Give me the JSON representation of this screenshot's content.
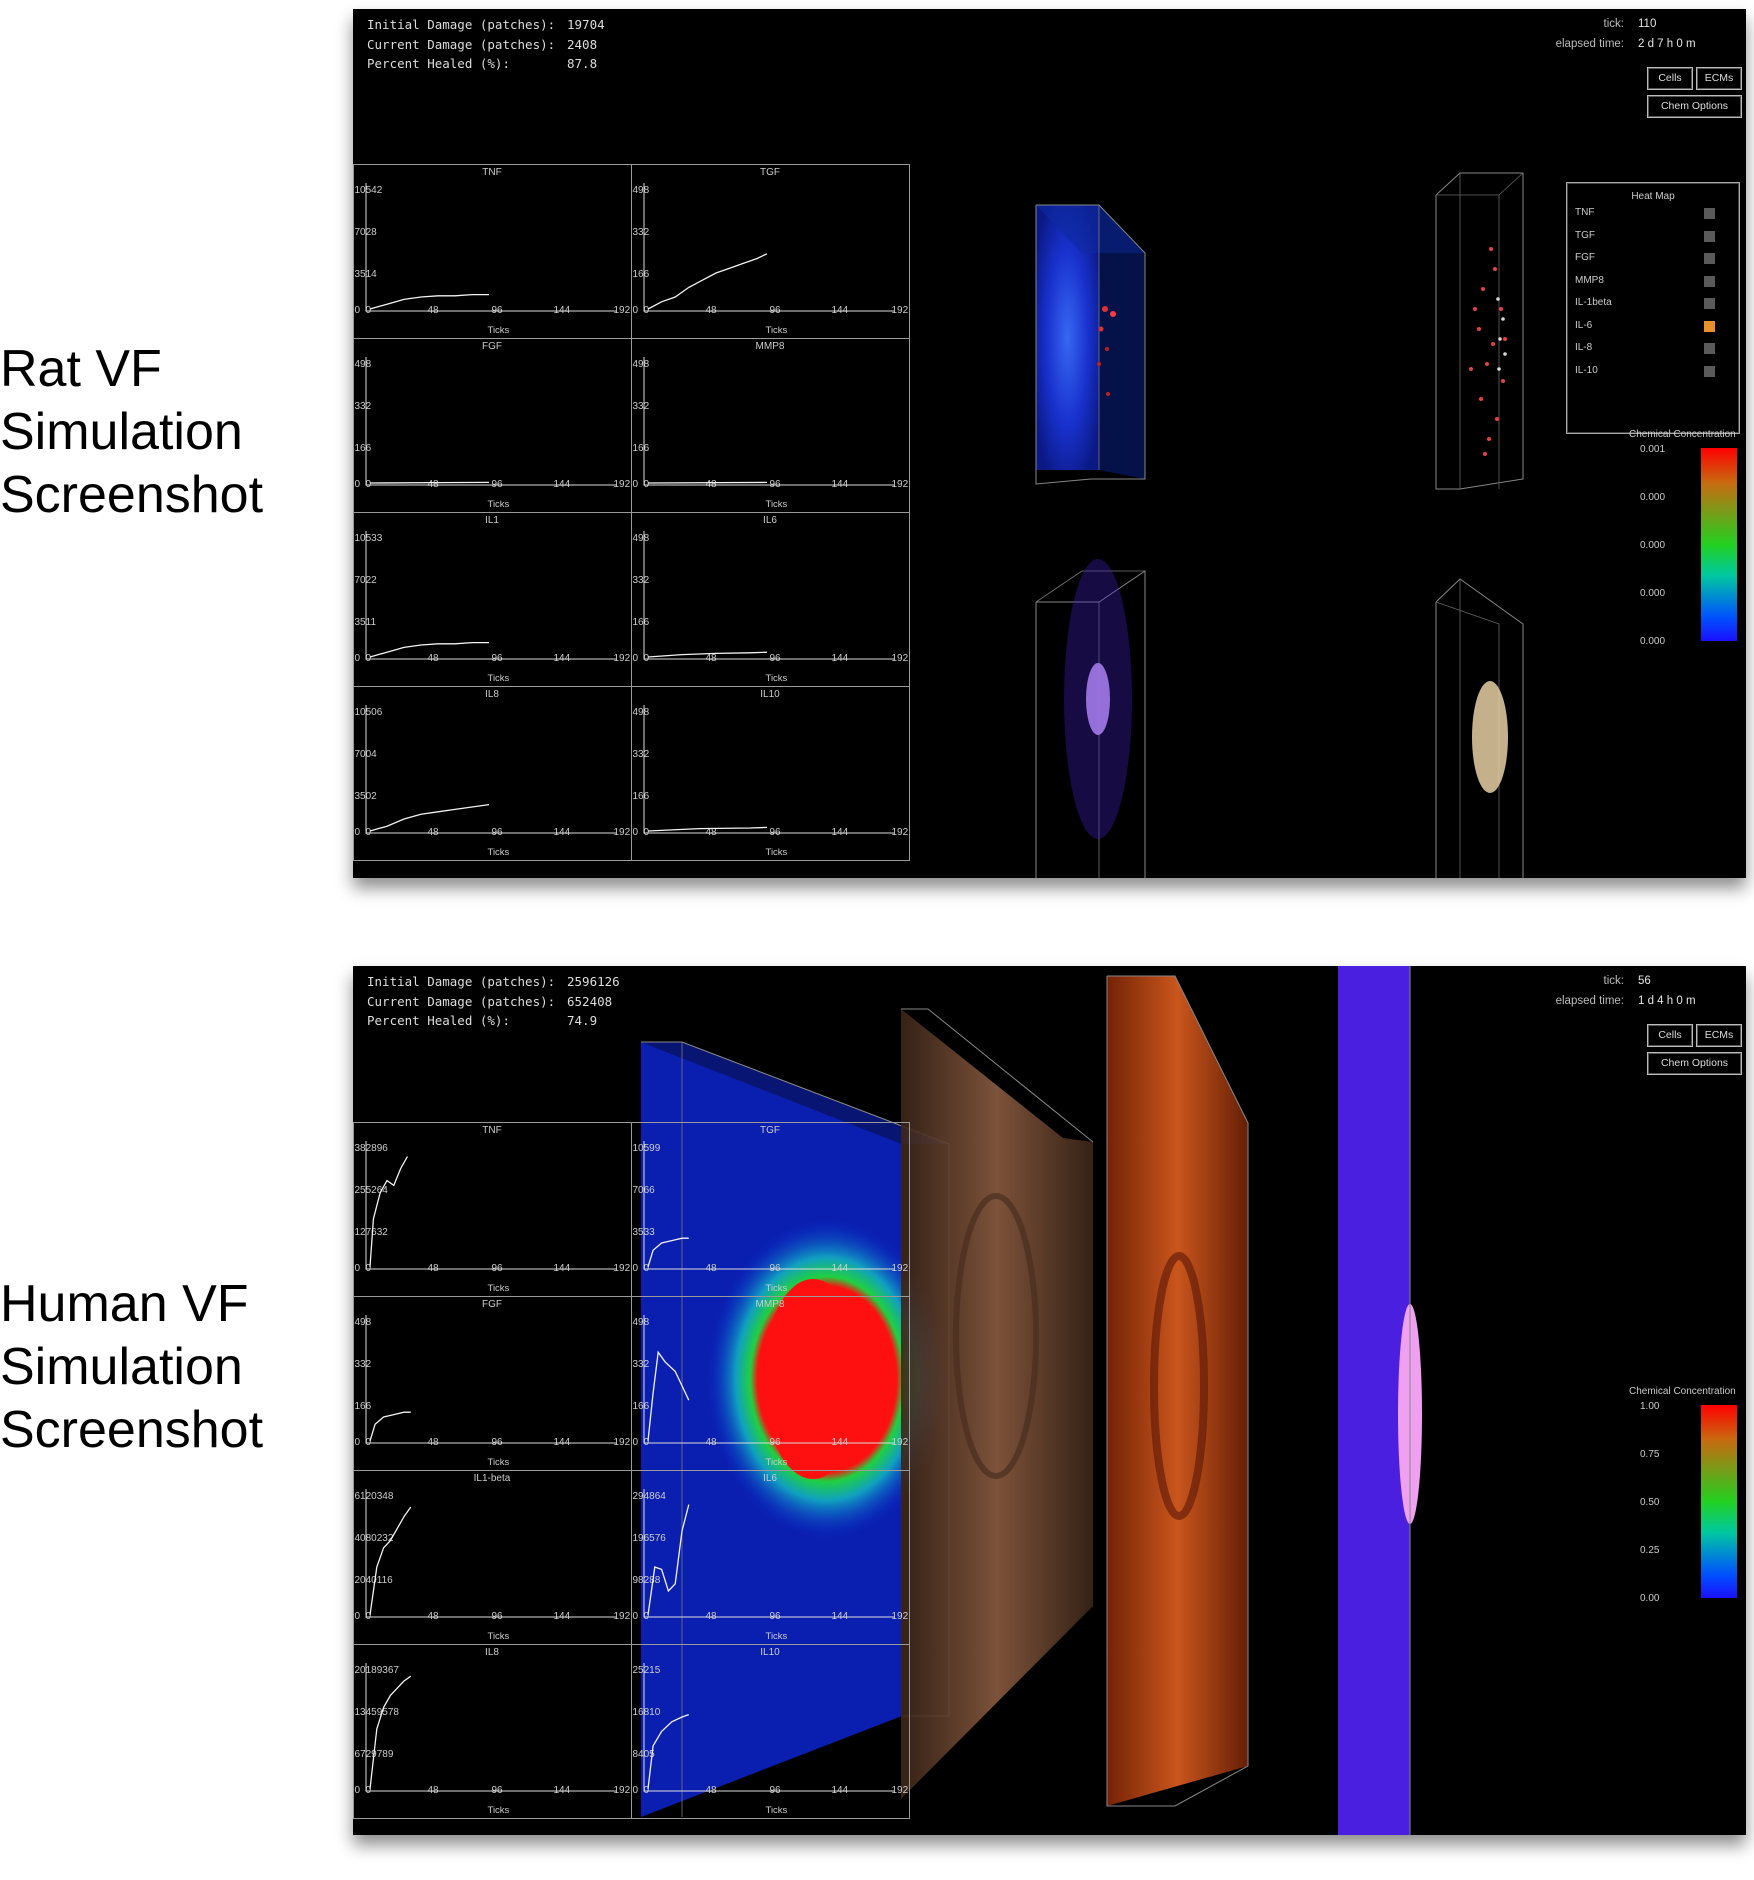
{
  "captions": {
    "rat": [
      "Rat VF",
      "Simulation",
      "Screenshot"
    ],
    "human": [
      "Human VF",
      "Simulation",
      "Screenshot"
    ]
  },
  "panels": {
    "rat": {
      "stats": {
        "initial_label": "Initial Damage (patches):",
        "initial_value": "19704",
        "current_label": "Current Damage (patches):",
        "current_value": "2408",
        "healed_label": "Percent Healed (%):",
        "healed_value": "87.8"
      },
      "tick_label": "tick:",
      "tick_value": "110",
      "elapsed_label": "elapsed time:",
      "elapsed_value": "2 d 7 h 0 m",
      "buttons": {
        "cells": "Cells",
        "ecms": "ECMs",
        "chem": "Chem Options"
      },
      "graphs": [
        {
          "title": "TNF",
          "y": [
            "10542",
            "7028",
            "3514"
          ]
        },
        {
          "title": "TGF",
          "y": [
            "498",
            "332",
            "166"
          ]
        },
        {
          "title": "FGF",
          "y": [
            "498",
            "332",
            "166"
          ]
        },
        {
          "title": "MMP8",
          "y": [
            "498",
            "332",
            "166"
          ]
        },
        {
          "title": "IL1",
          "y": [
            "10533",
            "7022",
            "3511"
          ]
        },
        {
          "title": "IL6",
          "y": [
            "498",
            "332",
            "166"
          ]
        },
        {
          "title": "IL8",
          "y": [
            "10506",
            "7004",
            "3502"
          ]
        },
        {
          "title": "IL10",
          "y": [
            "498",
            "332",
            "166"
          ]
        }
      ],
      "heatmap": {
        "title": "Heat Map",
        "items": [
          {
            "label": "TNF",
            "color": "#5a5a5a"
          },
          {
            "label": "TGF",
            "color": "#5a5a5a"
          },
          {
            "label": "FGF",
            "color": "#5a5a5a"
          },
          {
            "label": "MMP8",
            "color": "#5a5a5a"
          },
          {
            "label": "IL-1beta",
            "color": "#5a5a5a"
          },
          {
            "label": "IL-6",
            "color": "#e8902e"
          },
          {
            "label": "IL-8",
            "color": "#5a5a5a"
          },
          {
            "label": "IL-10",
            "color": "#5a5a5a"
          }
        ]
      },
      "colorbar": {
        "title": "Chemical Concentration",
        "values": [
          "0.001",
          "0.000",
          "0.000",
          "0.000",
          "0.000"
        ]
      }
    },
    "human": {
      "stats": {
        "initial_label": "Initial Damage (patches):",
        "initial_value": "2596126",
        "current_label": "Current Damage (patches):",
        "current_value": "652408",
        "healed_label": "Percent Healed (%):",
        "healed_value": "74.9"
      },
      "tick_label": "tick:",
      "tick_value": "56",
      "elapsed_label": "elapsed time:",
      "elapsed_value": "1 d 4 h 0 m",
      "buttons": {
        "cells": "Cells",
        "ecms": "ECMs",
        "chem": "Chem Options"
      },
      "graphs": [
        {
          "title": "TNF",
          "y": [
            "382896",
            "255264",
            "127632"
          ]
        },
        {
          "title": "TGF",
          "y": [
            "10599",
            "7066",
            "3533"
          ]
        },
        {
          "title": "FGF",
          "y": [
            "498",
            "332",
            "166"
          ]
        },
        {
          "title": "MMP8",
          "y": [
            "498",
            "332",
            "166"
          ]
        },
        {
          "title": "IL1-beta",
          "y": [
            "6120348",
            "4080232",
            "2040116"
          ]
        },
        {
          "title": "IL6",
          "y": [
            "294864",
            "196576",
            "98288"
          ]
        },
        {
          "title": "IL8",
          "y": [
            "20189367",
            "13459578",
            "6729789"
          ]
        },
        {
          "title": "IL10",
          "y": [
            "25215",
            "16810",
            "8405"
          ]
        }
      ],
      "colorbar": {
        "title": "Chemical Concentration",
        "values": [
          "1.00",
          "0.75",
          "0.50",
          "0.25",
          "0.00"
        ]
      }
    }
  },
  "axis": {
    "x_ticks": [
      "0",
      "48",
      "96",
      "144",
      "192"
    ],
    "x_label": "Ticks",
    "y_zero": "0"
  }
}
